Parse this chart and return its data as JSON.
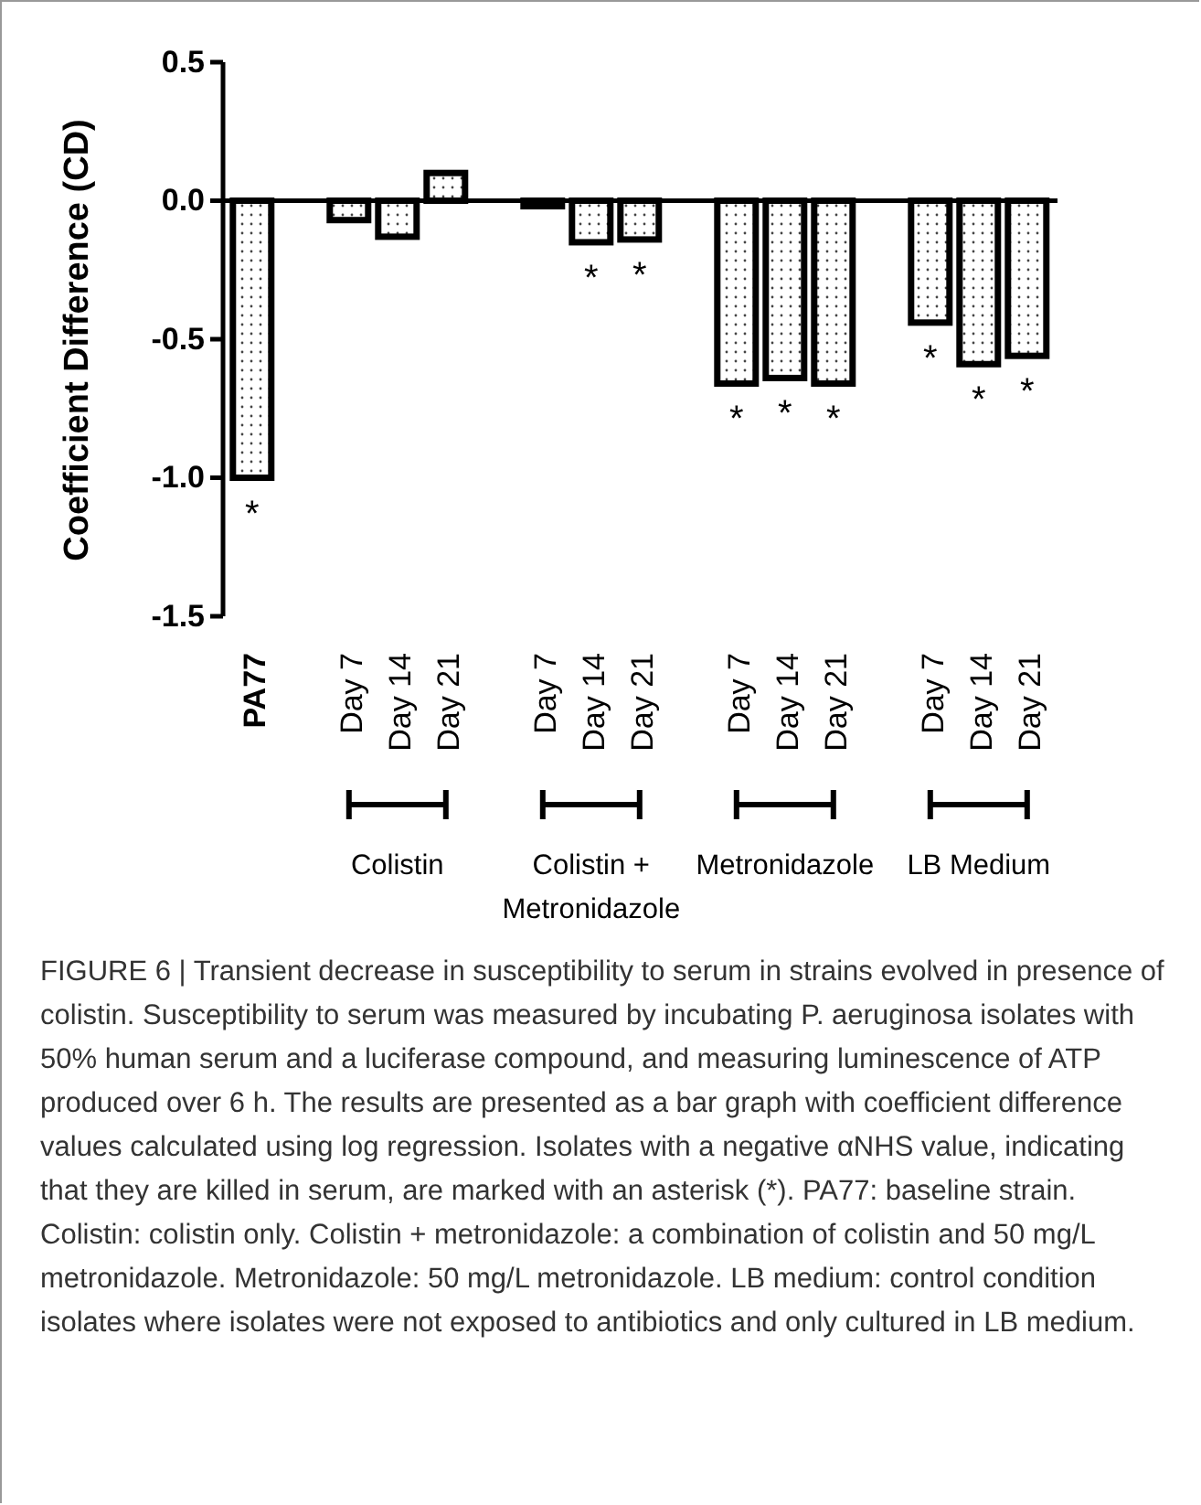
{
  "chart_data": {
    "type": "bar",
    "ylabel": "Coefficient Difference (CD)",
    "categories": [
      "PA77",
      null,
      "Day 7",
      "Day 14",
      "Day 21",
      null,
      "Day 7",
      "Day 14",
      "Day 21",
      null,
      "Day 7",
      "Day 14",
      "Day 21",
      null,
      "Day 7",
      "Day 14",
      "Day 21"
    ],
    "values": [
      -1.0,
      null,
      -0.07,
      -0.13,
      0.1,
      null,
      -0.02,
      -0.15,
      -0.14,
      null,
      -0.66,
      -0.64,
      -0.66,
      null,
      -0.44,
      -0.59,
      -0.56
    ],
    "value_labels": [
      "*",
      null,
      null,
      null,
      null,
      null,
      null,
      "*",
      "*",
      null,
      "*",
      "*",
      "*",
      null,
      "*",
      "*",
      "*"
    ],
    "color": "#000000",
    "ylim": [
      -1.5,
      0.5
    ],
    "yticks": [
      {
        "value": 0.5,
        "label": "0.5"
      },
      {
        "value": 0,
        "label": "0.0"
      },
      {
        "value": -0.5,
        "label": "-0.5"
      },
      {
        "value": -1,
        "label": "-1.0"
      },
      {
        "value": -1.5,
        "label": "-1.5"
      }
    ],
    "annotations": [
      "Colistin",
      "Colistin + Metronidazole",
      "Metronidazole",
      "LB Medium",
      "FIGURE 6 | Transient decrease in susceptibility to serum in strains evolved in presence of colistin. Susceptibility to serum was measured by incubating P. aeruginosa isolates with 50% human serum and a luciferase compound, and measuring luminescence of ATP produced over 6 h. The results are presented as a bar graph with coefficient difference values calculated using log regression. Isolates with a negative αNHS value, indicating that they are killed in serum, are marked with an asterisk (*). PA77: baseline strain. Colistin: colistin only. Colistin + metronidazole: a combination of colistin and 50 mg/L metronidazole. Metronidazole: 50 mg/L metronidazole. LB medium: control condition isolates where isolates were not exposed to antibiotics and only cultured in LB medium."
    ]
  }
}
